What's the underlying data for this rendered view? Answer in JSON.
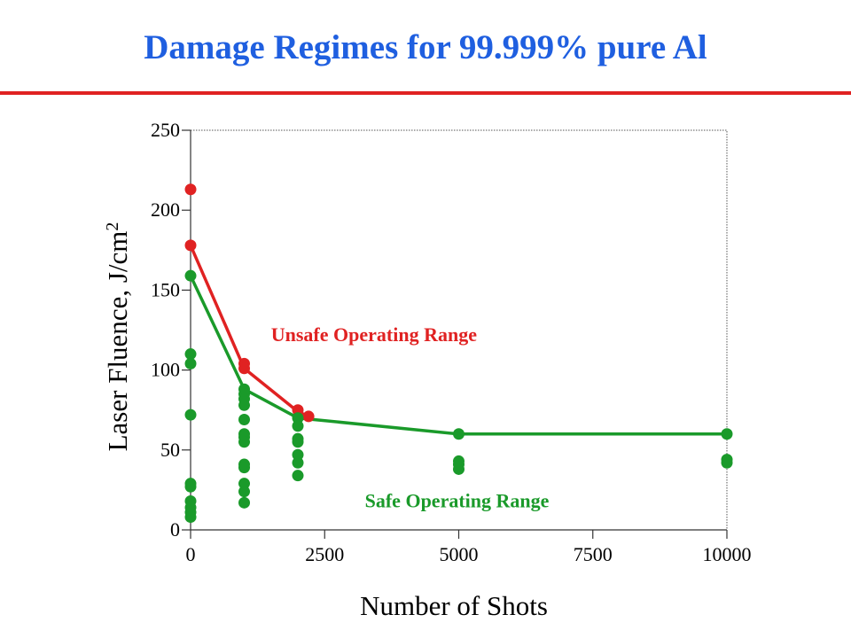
{
  "title": "Damage Regimes for 99.999% pure Al",
  "colors": {
    "title": "#1f5fe0",
    "rule": "#e02222",
    "unsafe": "#e02222",
    "safe": "#1a9a2a",
    "axis": "#555555"
  },
  "chart_data": {
    "type": "scatter",
    "xlabel": "Number of Shots",
    "ylabel": "Laser Fluence, J/cm",
    "ylabel_superscript": "2",
    "xlim": [
      0,
      10000
    ],
    "ylim": [
      0,
      250
    ],
    "xticks": [
      0,
      2500,
      5000,
      7500,
      10000
    ],
    "yticks": [
      0,
      50,
      100,
      150,
      200,
      250
    ],
    "xtick_labels": [
      "0",
      "2500",
      "5000",
      "7500",
      "10000"
    ],
    "ytick_labels": [
      "0",
      "50",
      "100",
      "150",
      "200",
      "250"
    ],
    "grid": false,
    "annotations": [
      {
        "text": "Unsafe Operating Range",
        "color": "unsafe",
        "x": 1500,
        "y": 118
      },
      {
        "text": "Safe Operating Range",
        "color": "safe",
        "x": 3250,
        "y": 14
      }
    ],
    "series": [
      {
        "color": "unsafe",
        "line": [
          [
            0,
            178
          ],
          [
            1000,
            101
          ],
          [
            2000,
            74
          ],
          [
            2200,
            71
          ]
        ],
        "points": [
          [
            0,
            213
          ],
          [
            0,
            178
          ],
          [
            1000,
            104
          ],
          [
            1000,
            101
          ],
          [
            2000,
            75
          ],
          [
            2200,
            71
          ]
        ]
      },
      {
        "color": "safe",
        "line": [
          [
            0,
            159
          ],
          [
            1000,
            88
          ],
          [
            2000,
            70
          ],
          [
            5000,
            60
          ],
          [
            10000,
            60
          ]
        ],
        "points": [
          [
            0,
            159
          ],
          [
            0,
            110
          ],
          [
            0,
            104
          ],
          [
            0,
            72
          ],
          [
            0,
            29
          ],
          [
            0,
            27
          ],
          [
            0,
            18
          ],
          [
            0,
            14
          ],
          [
            0,
            11
          ],
          [
            0,
            8
          ],
          [
            1000,
            88
          ],
          [
            1000,
            85
          ],
          [
            1000,
            82
          ],
          [
            1000,
            78
          ],
          [
            1000,
            69
          ],
          [
            1000,
            60
          ],
          [
            1000,
            58
          ],
          [
            1000,
            55
          ],
          [
            1000,
            41
          ],
          [
            1000,
            39
          ],
          [
            1000,
            29
          ],
          [
            1000,
            24
          ],
          [
            1000,
            17
          ],
          [
            2000,
            70
          ],
          [
            2000,
            65
          ],
          [
            2000,
            57
          ],
          [
            2000,
            55
          ],
          [
            2000,
            47
          ],
          [
            2000,
            42
          ],
          [
            2000,
            34
          ],
          [
            5000,
            60
          ],
          [
            5000,
            43
          ],
          [
            5000,
            41
          ],
          [
            5000,
            38
          ],
          [
            10000,
            60
          ],
          [
            10000,
            44
          ],
          [
            10000,
            42
          ]
        ]
      }
    ]
  }
}
